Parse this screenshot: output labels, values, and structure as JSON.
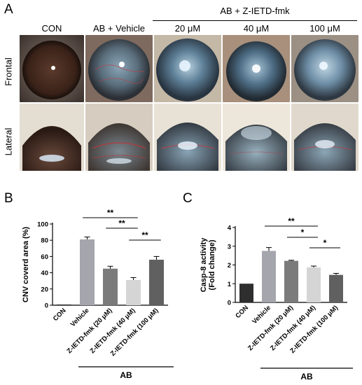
{
  "panel_a": {
    "letter": "A",
    "group_label": "AB + Z-IETD-fmk",
    "columns": [
      "CON",
      "AB + Vehicle",
      "20 μM",
      "40 μM",
      "100 μM"
    ],
    "rows": [
      "Frontal",
      "Lateral"
    ]
  },
  "chart_data": [
    {
      "type": "bar",
      "letter": "B",
      "categories": [
        "CON",
        "Vehicle",
        "Z-IETD-fmk (20 μM)",
        "Z-IETD-fmk (40 μM)",
        "Z-IETD-fmk (100 μM)"
      ],
      "values": [
        0,
        81,
        45,
        31,
        56
      ],
      "errors": [
        0,
        3,
        3,
        3,
        4
      ],
      "colors": [
        "#2e2e2e",
        "#a5a5ad",
        "#7b7b7b",
        "#d5d5d5",
        "#606060"
      ],
      "ylabel": "CNV coverd area (%)",
      "ylim": [
        0,
        100
      ],
      "yticks": [
        0,
        20,
        40,
        60,
        80,
        100
      ],
      "group_label": "AB",
      "significance": [
        {
          "from": 1,
          "to": 3,
          "label": "**"
        },
        {
          "from": 2,
          "to": 3,
          "label": "**"
        },
        {
          "from": 3,
          "to": 4,
          "label": "**"
        }
      ]
    },
    {
      "type": "bar",
      "letter": "C",
      "categories": [
        "CON",
        "Vehicle",
        "Z-IETD-fmk (20 μM)",
        "Z-IETD-fmk (40 μM)",
        "Z-IETD-fmk (100 μM)"
      ],
      "values": [
        1.0,
        2.75,
        2.22,
        1.87,
        1.47
      ],
      "errors": [
        0,
        0.18,
        0.03,
        0.07,
        0.08
      ],
      "colors": [
        "#2e2e2e",
        "#a5a5ad",
        "#7b7b7b",
        "#d5d5d5",
        "#606060"
      ],
      "ylabel": "Casp-8 activity (Fold change)",
      "ylabel_lines": [
        "Casp-8 activity",
        "(Fold change)"
      ],
      "ylim": [
        0,
        4
      ],
      "yticks": [
        0,
        1,
        2,
        3,
        4
      ],
      "group_label": "AB",
      "significance": [
        {
          "from": 1,
          "to": 3,
          "label": "**"
        },
        {
          "from": 2,
          "to": 3,
          "label": "*"
        },
        {
          "from": 3,
          "to": 4,
          "label": "*"
        }
      ]
    }
  ]
}
